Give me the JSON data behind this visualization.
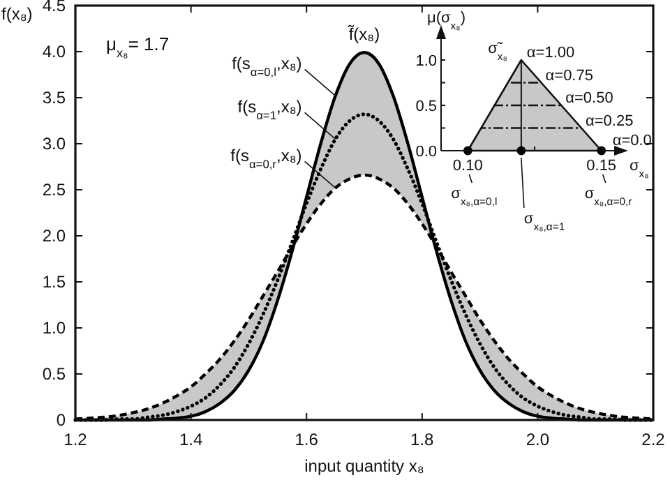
{
  "chart_data": [
    {
      "type": "line",
      "xlabel": "input quantity x₈",
      "ylabel": "f(x₈)",
      "x": [
        1.2,
        1.225,
        1.25,
        1.275,
        1.3,
        1.325,
        1.35,
        1.375,
        1.4,
        1.425,
        1.45,
        1.475,
        1.5,
        1.525,
        1.55,
        1.575,
        1.6,
        1.625,
        1.65,
        1.675,
        1.7,
        1.725,
        1.75,
        1.775,
        1.8,
        1.825,
        1.85,
        1.875,
        1.9,
        1.925,
        1.95,
        1.975,
        2.0,
        2.025,
        2.05,
        2.075,
        2.1,
        2.125,
        2.15,
        2.175,
        2.2
      ],
      "xlim": [
        1.2,
        2.2
      ],
      "xticks": [
        1.2,
        1.4,
        1.6,
        1.8,
        {
          "value": 2,
          "label": "2.0"
        },
        2.2
      ],
      "ylim": [
        0,
        4.5
      ],
      "yticks": [
        0,
        0.5,
        {
          "value": 1,
          "label": "1.0"
        },
        1.5,
        {
          "value": 2,
          "label": "2.0"
        },
        2.5,
        {
          "value": 3,
          "label": "3.0"
        },
        3.5,
        {
          "value": 4,
          "label": "4.0"
        },
        4.5
      ],
      "series": [
        {
          "name": "f(s$_{α=0,l}$,x₈)",
          "color": "#000000",
          "line_style": "solid",
          "values": [
            0,
            0,
            0,
            0,
            0,
            0,
            0.01,
            0.02,
            0.04,
            0.09,
            0.18,
            0.32,
            0.54,
            0.86,
            1.3,
            1.83,
            2.42,
            3.01,
            3.52,
            3.87,
            3.99,
            3.87,
            3.52,
            3.01,
            2.42,
            1.83,
            1.3,
            0.86,
            0.54,
            0.32,
            0.18,
            0.09,
            0.04,
            0.02,
            0.01,
            0,
            0,
            0,
            0,
            0,
            0
          ]
        },
        {
          "name": "f(s$_{α=1}$,x₈)",
          "color": "#000000",
          "line_style": "dotted",
          "values": [
            0,
            0,
            0,
            0.01,
            0.01,
            0.03,
            0.05,
            0.09,
            0.15,
            0.24,
            0.38,
            0.57,
            0.83,
            1.15,
            1.52,
            1.93,
            2.35,
            2.73,
            3.05,
            3.25,
            3.32,
            3.25,
            3.05,
            2.73,
            2.35,
            1.93,
            1.52,
            1.15,
            0.83,
            0.57,
            0.38,
            0.24,
            0.15,
            0.09,
            0.05,
            0.03,
            0.01,
            0.01,
            0,
            0,
            0
          ],
          "lower": [
            0,
            0,
            0,
            0,
            0,
            0,
            0.01,
            0.02,
            0.04,
            0.09,
            0.18,
            0.32,
            0.54,
            0.86,
            1.3,
            1.83,
            2.13,
            2.35,
            2.52,
            2.62,
            2.66,
            2.62,
            2.52,
            2.35,
            2.13,
            1.83,
            1.3,
            0.86,
            0.54,
            0.32,
            0.18,
            0.09,
            0.04,
            0.02,
            0.01,
            0,
            0,
            0,
            0,
            0,
            0
          ],
          "upper": [
            0.01,
            0.02,
            0.03,
            0.05,
            0.08,
            0.12,
            0.18,
            0.26,
            0.36,
            0.5,
            0.66,
            0.86,
            1.09,
            1.35,
            1.61,
            1.88,
            2.42,
            3.01,
            3.52,
            3.87,
            3.99,
            3.87,
            3.52,
            3.01,
            2.42,
            1.88,
            1.61,
            1.35,
            1.09,
            0.86,
            0.66,
            0.5,
            0.36,
            0.26,
            0.18,
            0.12,
            0.08,
            0.05,
            0.03,
            0.02,
            0.01
          ]
        },
        {
          "name": "f(s$_{α=0,r}$,x₈)",
          "color": "#000000",
          "line_style": "dashed",
          "values": [
            0.01,
            0.02,
            0.03,
            0.05,
            0.08,
            0.12,
            0.18,
            0.26,
            0.36,
            0.5,
            0.66,
            0.86,
            1.09,
            1.35,
            1.61,
            1.88,
            2.13,
            2.35,
            2.52,
            2.62,
            2.66,
            2.62,
            2.52,
            2.35,
            2.13,
            1.88,
            1.61,
            1.35,
            1.09,
            0.86,
            0.66,
            0.5,
            0.36,
            0.26,
            0.18,
            0.12,
            0.08,
            0.05,
            0.03,
            0.02,
            0.01
          ]
        }
      ],
      "annotations": [
        "μ$_{x₈}$= 1.7",
        {
          "text": "f̃(x₈)",
          "x": 1.7,
          "y": 3.99
        }
      ]
    },
    {
      "type": "area",
      "xlabel": "σ$_{x₈}$",
      "ylabel": "μ(σ$_{x₈}$)",
      "xlim": [
        0.09,
        0.16
      ],
      "xticks": [
        {
          "value": 0.1,
          "label": "0.10"
        },
        {
          "value": 0.125,
          "label": null
        },
        {
          "value": 0.15,
          "label": "0.15"
        }
      ],
      "ylim": [
        0,
        1.2
      ],
      "yticks": [
        {
          "value": 0,
          "label": "0.0"
        },
        {
          "value": 0.25,
          "label": null
        },
        {
          "value": 0.5,
          "label": "0.5"
        },
        {
          "value": 0.75,
          "label": null
        },
        {
          "value": 1,
          "label": "1.0"
        }
      ],
      "series": [
        {
          "type": "area",
          "color": "#c8c8c8",
          "x": [
            0.1,
            0.12,
            0.15
          ],
          "values": [
            0,
            1,
            0
          ]
        },
        {
          "type": "scatter",
          "color": "#000000",
          "marker": "circle",
          "x": [
            0.1,
            0.12,
            0.15
          ],
          "values": [
            0,
            0,
            0
          ]
        }
      ],
      "ref_lines": [
        {
          "axis": "y",
          "value": 0.25,
          "label": "α=0.25",
          "line_style": "dashed"
        },
        {
          "axis": "y",
          "value": 0.5,
          "label": "α=0.50",
          "line_style": "dashed"
        },
        {
          "axis": "y",
          "value": 0.75,
          "label": "α=0.75",
          "line_style": "dashed"
        },
        {
          "axis": "x",
          "value": 0.12,
          "line_style": "solid"
        }
      ],
      "annotations": [
        {
          "text": "σ̃$_{x₈}$",
          "x": 0.12,
          "y": 1
        },
        {
          "text": "α=1.00",
          "x": 0.12,
          "y": 1
        },
        {
          "text": "α=0.0",
          "x": 0.15,
          "y": 0
        },
        {
          "text": "σ$_{x₈,α=0,l}$",
          "x": 0.1,
          "y": 0
        },
        {
          "text": "σ$_{x₈,α=1}$",
          "x": 0.12,
          "y": 0
        },
        {
          "text": "σ$_{x₈,α=0,r}$",
          "x": 0.15,
          "y": 0
        }
      ]
    }
  ]
}
